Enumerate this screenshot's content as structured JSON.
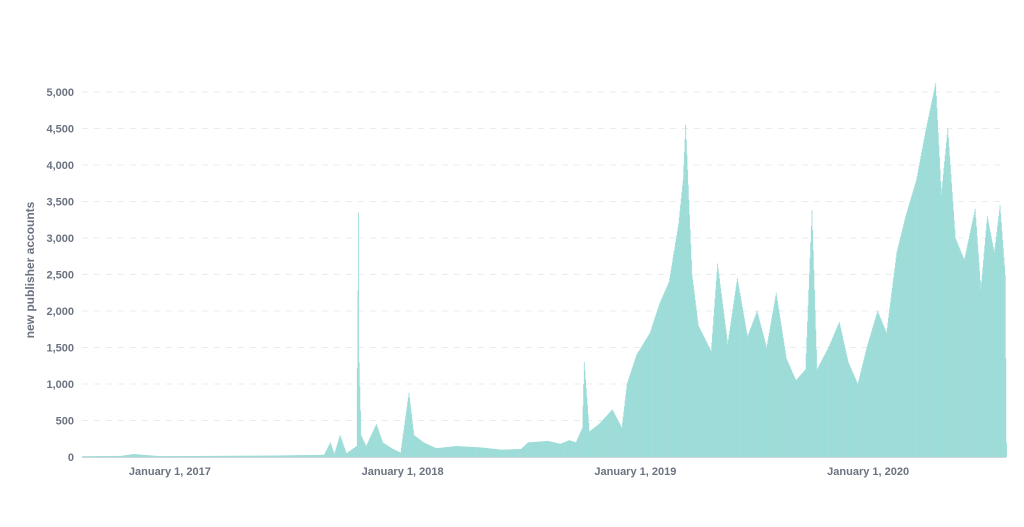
{
  "chart_data": {
    "type": "bar",
    "title": "",
    "xlabel": "",
    "ylabel": "new publisher accounts",
    "ylim": [
      0,
      5000
    ],
    "y_ticks": [
      0,
      500,
      1000,
      1500,
      2000,
      2500,
      3000,
      3500,
      4000,
      4500,
      5000
    ],
    "y_tick_labels": [
      "0",
      "500",
      "1,000",
      "1,500",
      "2,000",
      "2,500",
      "3,000",
      "3,500",
      "4,000",
      "4,500",
      "5,000"
    ],
    "x_range": [
      "2016-11-01",
      "2020-10-20"
    ],
    "x_ticks": [
      {
        "date": "2017-01-01",
        "label": "January 1, 2017"
      },
      {
        "date": "2018-01-01",
        "label": "January 1, 2018"
      },
      {
        "date": "2019-01-01",
        "label": "January 1, 2019"
      },
      {
        "date": "2020-01-01",
        "label": "January 1, 2020"
      }
    ],
    "grid": true,
    "color": "#9ddcd8",
    "series": [
      {
        "points": [
          [
            "2016-11-01",
            10
          ],
          [
            "2017-01-01",
            15
          ],
          [
            "2017-01-20",
            40
          ],
          [
            "2017-03-01",
            12
          ],
          [
            "2017-06-01",
            15
          ],
          [
            "2017-09-01",
            20
          ],
          [
            "2017-11-15",
            30
          ],
          [
            "2017-11-25",
            200
          ],
          [
            "2017-12-01",
            40
          ],
          [
            "2017-12-10",
            300
          ],
          [
            "2017-12-20",
            50
          ],
          [
            "2018-01-05",
            150
          ],
          [
            "2018-01-08",
            3350
          ],
          [
            "2018-01-09",
            1300
          ],
          [
            "2018-01-12",
            300
          ],
          [
            "2018-01-20",
            150
          ],
          [
            "2018-02-05",
            450
          ],
          [
            "2018-02-15",
            200
          ],
          [
            "2018-03-01",
            120
          ],
          [
            "2018-03-15",
            60
          ],
          [
            "2018-03-28",
            880
          ],
          [
            "2018-04-05",
            300
          ],
          [
            "2018-04-20",
            200
          ],
          [
            "2018-05-10",
            120
          ],
          [
            "2018-06-10",
            150
          ],
          [
            "2018-07-20",
            130
          ],
          [
            "2018-08-20",
            100
          ],
          [
            "2018-09-20",
            110
          ],
          [
            "2018-10-01",
            200
          ],
          [
            "2018-11-01",
            220
          ],
          [
            "2018-11-20",
            180
          ],
          [
            "2018-12-05",
            230
          ],
          [
            "2018-12-15",
            200
          ],
          [
            "2018-12-25",
            400
          ],
          [
            "2018-12-28",
            1300
          ],
          [
            "2019-01-05",
            350
          ],
          [
            "2019-01-20",
            450
          ],
          [
            "2019-02-10",
            650
          ],
          [
            "2019-02-25",
            400
          ],
          [
            "2019-03-05",
            1000
          ],
          [
            "2019-03-20",
            1400
          ],
          [
            "2019-04-10",
            1700
          ],
          [
            "2019-04-25",
            2100
          ],
          [
            "2019-05-10",
            2400
          ],
          [
            "2019-05-25",
            3200
          ],
          [
            "2019-06-01",
            3800
          ],
          [
            "2019-06-05",
            4550
          ],
          [
            "2019-06-15",
            2500
          ],
          [
            "2019-06-25",
            1800
          ],
          [
            "2019-07-15",
            1450
          ],
          [
            "2019-07-25",
            2650
          ],
          [
            "2019-08-10",
            1550
          ],
          [
            "2019-08-25",
            2450
          ],
          [
            "2019-09-10",
            1650
          ],
          [
            "2019-09-25",
            2000
          ],
          [
            "2019-10-10",
            1500
          ],
          [
            "2019-10-25",
            2250
          ],
          [
            "2019-11-10",
            1350
          ],
          [
            "2019-11-25",
            1050
          ],
          [
            "2019-12-10",
            1200
          ],
          [
            "2019-12-20",
            3380
          ],
          [
            "2019-12-28",
            1200
          ],
          [
            "2020-01-15",
            1500
          ],
          [
            "2020-02-01",
            1850
          ],
          [
            "2020-02-15",
            1300
          ],
          [
            "2020-03-01",
            1000
          ],
          [
            "2020-03-15",
            1500
          ],
          [
            "2020-04-01",
            2000
          ],
          [
            "2020-04-15",
            1700
          ],
          [
            "2020-05-01",
            2800
          ],
          [
            "2020-05-15",
            3300
          ],
          [
            "2020-06-01",
            3800
          ],
          [
            "2020-06-15",
            4450
          ],
          [
            "2020-07-01",
            5120
          ],
          [
            "2020-07-10",
            3600
          ],
          [
            "2020-07-20",
            4500
          ],
          [
            "2020-08-01",
            3000
          ],
          [
            "2020-08-15",
            2700
          ],
          [
            "2020-09-01",
            3400
          ],
          [
            "2020-09-10",
            2300
          ],
          [
            "2020-09-20",
            3300
          ],
          [
            "2020-10-01",
            2800
          ],
          [
            "2020-10-10",
            3450
          ],
          [
            "2020-10-18",
            2500
          ],
          [
            "2020-10-20",
            200
          ]
        ]
      }
    ]
  }
}
